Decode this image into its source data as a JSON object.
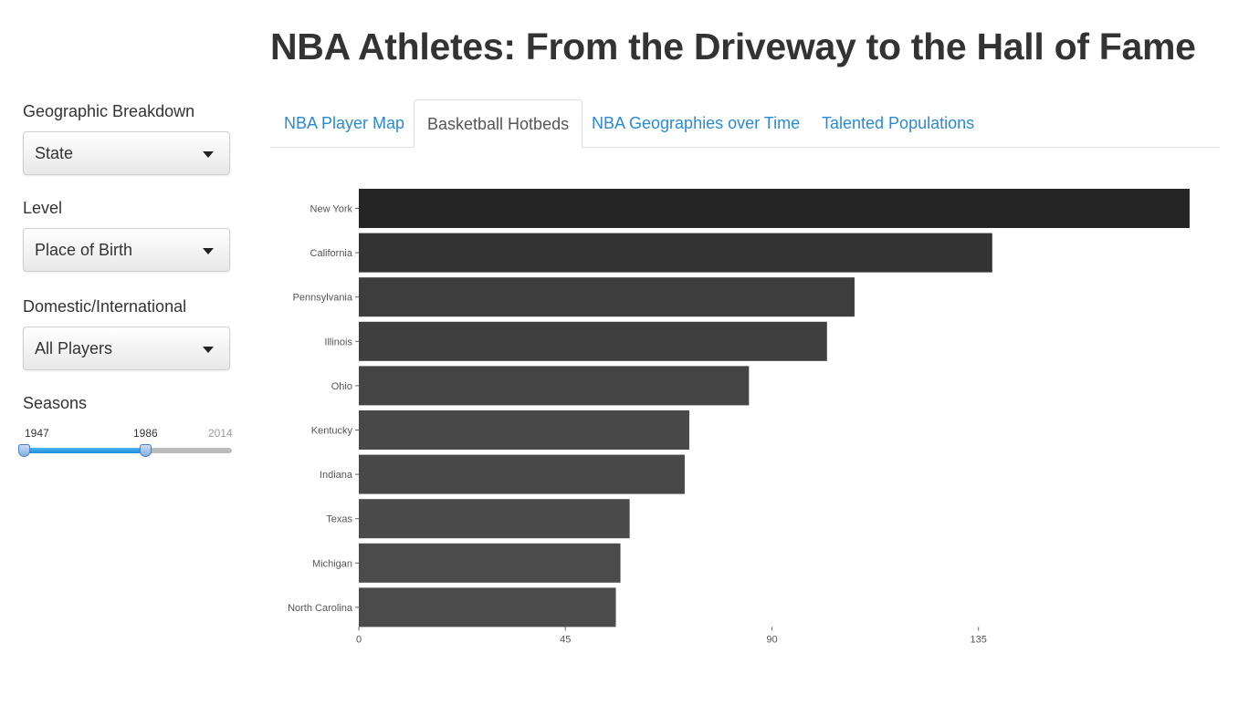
{
  "page": {
    "title": "NBA Athletes: From the Driveway to the Hall of Fame"
  },
  "sidebar": {
    "geo": {
      "label": "Geographic Breakdown",
      "value": "State"
    },
    "level": {
      "label": "Level",
      "value": "Place of Birth"
    },
    "domestic": {
      "label": "Domestic/International",
      "value": "All Players"
    },
    "seasons": {
      "label": "Seasons",
      "min": "1947",
      "selected_max": "1986",
      "max": "2014"
    }
  },
  "tabs": [
    {
      "label": "NBA Player Map",
      "active": false
    },
    {
      "label": "Basketball Hotbeds",
      "active": true
    },
    {
      "label": "NBA Geographies over Time",
      "active": false
    },
    {
      "label": "Talented Populations",
      "active": false
    }
  ],
  "chart_data": {
    "type": "bar",
    "orientation": "horizontal",
    "categories": [
      "New York",
      "California",
      "Pennsylvania",
      "Illinois",
      "Ohio",
      "Kentucky",
      "Indiana",
      "Texas",
      "Michigan",
      "North Carolina"
    ],
    "values": [
      181,
      138,
      108,
      102,
      85,
      72,
      71,
      59,
      57,
      56
    ],
    "colors": [
      "#252525",
      "#333333",
      "#3d3d3d",
      "#3f3f3f",
      "#444444",
      "#484848",
      "#484848",
      "#4a4a4a",
      "#4b4b4b",
      "#4b4b4b"
    ],
    "x_ticks": [
      0,
      45,
      90,
      135
    ],
    "xlim": [
      0,
      183
    ],
    "grid": false,
    "legend": "none"
  }
}
